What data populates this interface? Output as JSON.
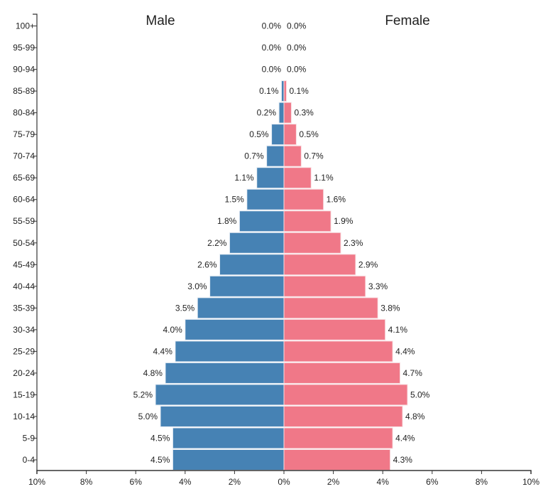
{
  "chart_data": {
    "type": "bar",
    "subtype": "population-pyramid",
    "categories": [
      "0-4",
      "5-9",
      "10-14",
      "15-19",
      "20-24",
      "25-29",
      "30-34",
      "35-39",
      "40-44",
      "45-49",
      "50-54",
      "55-59",
      "60-64",
      "65-69",
      "70-74",
      "75-79",
      "80-84",
      "85-89",
      "90-94",
      "95-99",
      "100+"
    ],
    "series": [
      {
        "name": "Male",
        "color": "#4682b4",
        "values": [
          4.5,
          4.5,
          5.0,
          5.2,
          4.8,
          4.4,
          4.0,
          3.5,
          3.0,
          2.6,
          2.2,
          1.8,
          1.5,
          1.1,
          0.7,
          0.5,
          0.2,
          0.1,
          0.0,
          0.0,
          0.0
        ],
        "labels": [
          "4.5%",
          "4.5%",
          "5.0%",
          "5.2%",
          "4.8%",
          "4.4%",
          "4.0%",
          "3.5%",
          "3.0%",
          "2.6%",
          "2.2%",
          "1.8%",
          "1.5%",
          "1.1%",
          "0.7%",
          "0.5%",
          "0.2%",
          "0.1%",
          "0.0%",
          "0.0%",
          "0.0%"
        ]
      },
      {
        "name": "Female",
        "color": "#f07888",
        "values": [
          4.3,
          4.4,
          4.8,
          5.0,
          4.7,
          4.4,
          4.1,
          3.8,
          3.3,
          2.9,
          2.3,
          1.9,
          1.6,
          1.1,
          0.7,
          0.5,
          0.3,
          0.1,
          0.0,
          0.0,
          0.0
        ],
        "labels": [
          "4.3%",
          "4.4%",
          "4.8%",
          "5.0%",
          "4.7%",
          "4.4%",
          "4.1%",
          "3.8%",
          "3.3%",
          "2.9%",
          "2.3%",
          "1.9%",
          "1.6%",
          "1.1%",
          "0.7%",
          "0.5%",
          "0.3%",
          "0.1%",
          "0.0%",
          "0.0%",
          "0.0%"
        ]
      }
    ],
    "titles": {
      "left": "Male",
      "right": "Female"
    },
    "xlim": [
      -10,
      10
    ],
    "xticks": [
      -10,
      -8,
      -6,
      -4,
      -2,
      0,
      2,
      4,
      6,
      8,
      10
    ],
    "xtick_labels": [
      "10%",
      "8%",
      "6%",
      "4%",
      "2%",
      "0%",
      "2%",
      "4%",
      "6%",
      "8%",
      "10%"
    ],
    "xlabel": "",
    "ylabel": "",
    "grid": false,
    "legend": "none"
  }
}
